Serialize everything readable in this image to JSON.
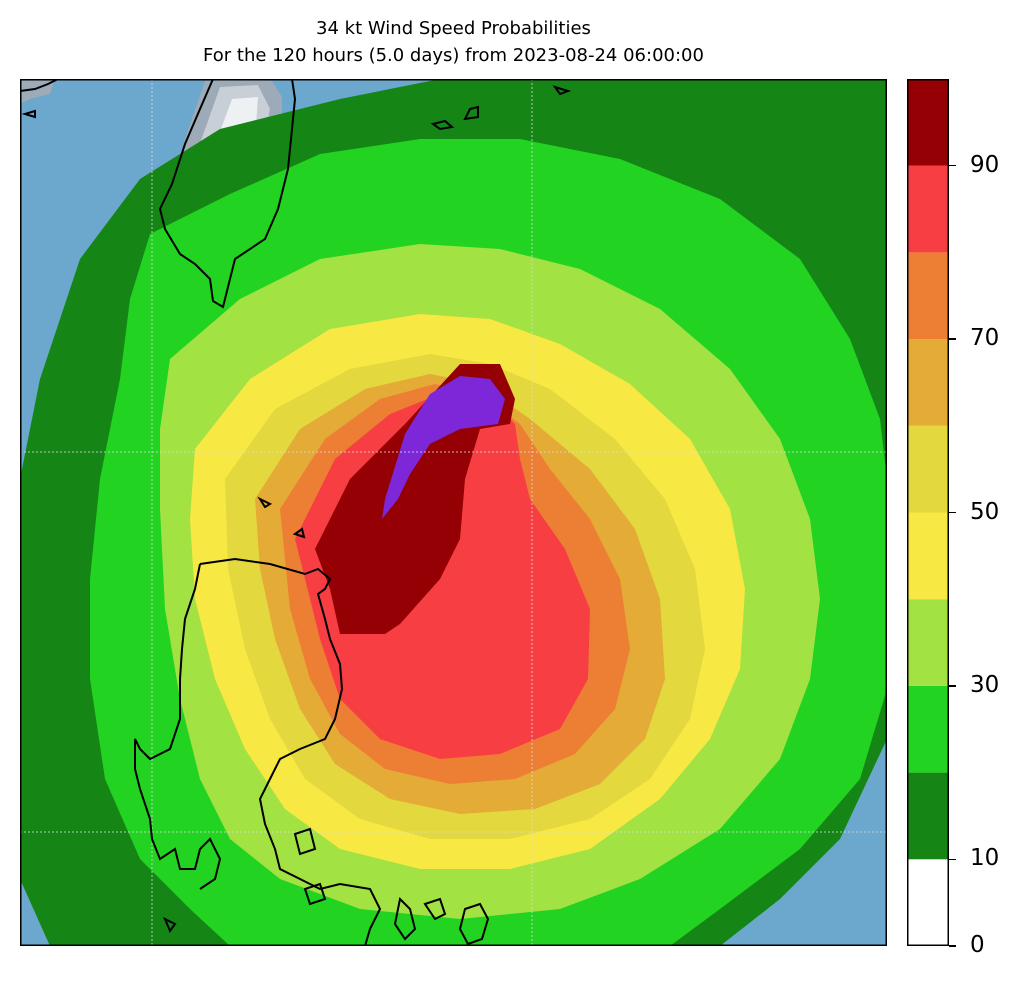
{
  "title": {
    "line1": "34 kt Wind Speed Probabilities",
    "line2": "For the 120 hours (5.0 days) from 2023-08-24 06:00:00"
  },
  "colorbar": {
    "levels": [
      0,
      10,
      20,
      30,
      40,
      50,
      60,
      70,
      80,
      90,
      100
    ],
    "colors": [
      "#ffffff",
      "#158516",
      "#22d321",
      "#a2e242",
      "#f8e843",
      "#e4d83f",
      "#e4ab37",
      "#ed7f35",
      "#f63e43",
      "#940004",
      "#7d27d8"
    ],
    "tick_labels": [
      "0",
      "10",
      "30",
      "50",
      "70",
      "90"
    ]
  },
  "map": {
    "ocean_color": "#6ca7cd",
    "land_colors": [
      "#9daab8",
      "#c9cfd6",
      "#eef1f4"
    ],
    "coastline_color": "#000000",
    "gridlines": true
  }
}
